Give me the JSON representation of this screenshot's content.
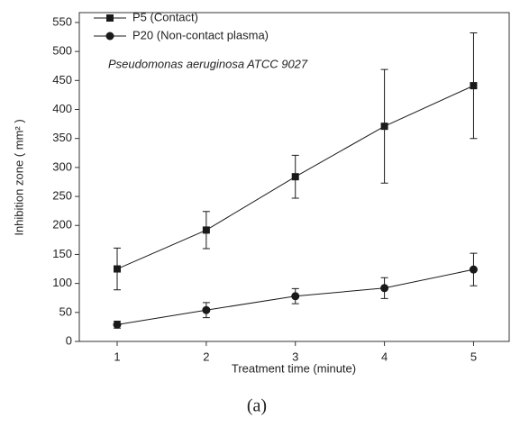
{
  "chart_data": {
    "type": "line",
    "x": [
      1,
      2,
      3,
      4,
      5
    ],
    "series": [
      {
        "name": "P5 (Contact)",
        "color": "#1a1a1a",
        "marker": "square",
        "values": [
          125,
          192,
          284,
          371,
          441
        ],
        "errors": [
          36,
          32,
          37,
          98,
          91
        ]
      },
      {
        "name": "P20 (Non-contact plasma)",
        "color": "#1a1a1a",
        "marker": "circle",
        "values": [
          29,
          54,
          78,
          92,
          124
        ],
        "errors": [
          6,
          13,
          13,
          18,
          28
        ]
      }
    ],
    "annotation": "Pseudomonas aeruginosa ATCC 9027",
    "x_label": "Treatment time (minute)",
    "y_label": "Inhibition zone ( mm² )",
    "caption": "(a)",
    "xlim": [
      0.575,
      5.4
    ],
    "xticks": [
      1,
      2,
      3,
      4,
      5
    ],
    "ylim": [
      0,
      567
    ],
    "yticks": [
      0,
      50,
      100,
      150,
      200,
      250,
      300,
      350,
      400,
      450,
      500,
      550
    ],
    "legend": "top-left",
    "grid": false
  }
}
